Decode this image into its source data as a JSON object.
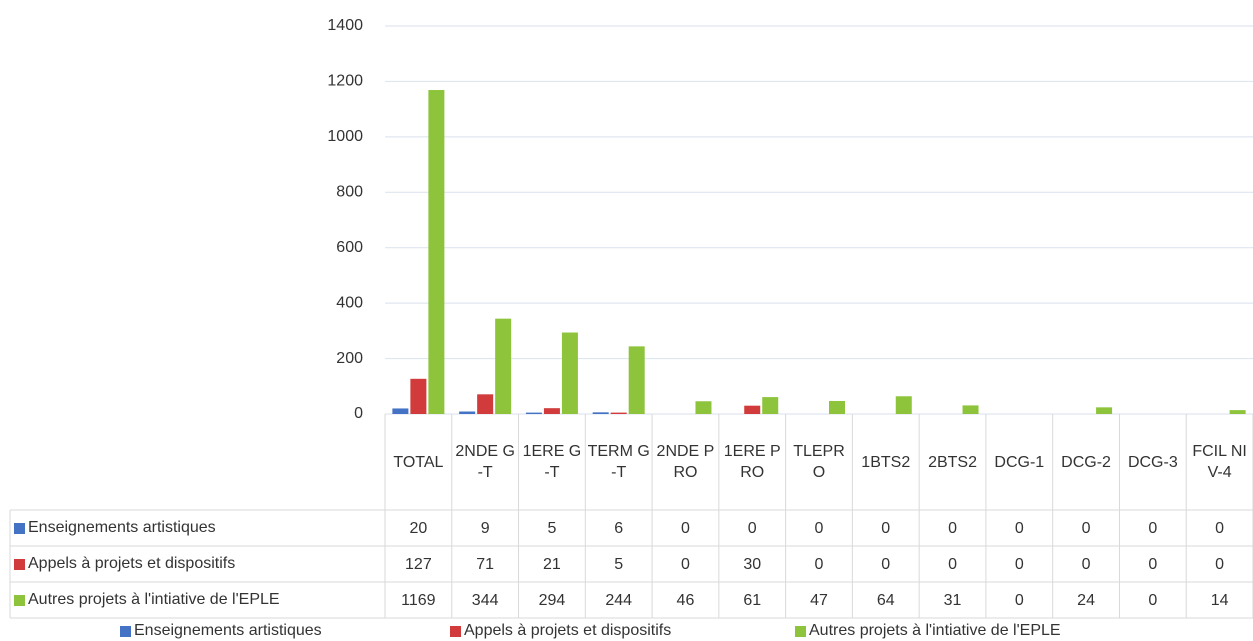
{
  "chart_data": {
    "type": "bar",
    "categories": [
      "TOTAL",
      "2NDE G-T",
      "1ERE G-T",
      "TERM G-T",
      "2NDE PRO",
      "1ERE PRO",
      "TLEPRO",
      "1BTS2",
      "2BTS2",
      "DCG-1",
      "DCG-2",
      "DCG-3",
      "FCIL NIV-4"
    ],
    "series": [
      {
        "name": "Enseignements artistiques",
        "color": "#4472c4",
        "values": [
          20,
          9,
          5,
          6,
          0,
          0,
          0,
          0,
          0,
          0,
          0,
          0,
          0
        ]
      },
      {
        "name": "Appels à projets et dispositifs",
        "color": "#d13b3b",
        "values": [
          127,
          71,
          21,
          5,
          0,
          30,
          0,
          0,
          0,
          0,
          0,
          0,
          0
        ]
      },
      {
        "name": "Autres projets à l'intiative de l'EPLE",
        "color": "#8dc43c",
        "values": [
          1169,
          344,
          294,
          244,
          46,
          61,
          47,
          64,
          31,
          0,
          24,
          0,
          14
        ]
      }
    ],
    "ylim": [
      0,
      1400
    ],
    "yticks": [
      0,
      200,
      400,
      600,
      800,
      1000,
      1200,
      1400
    ],
    "grid": true,
    "legend": "bottom"
  }
}
